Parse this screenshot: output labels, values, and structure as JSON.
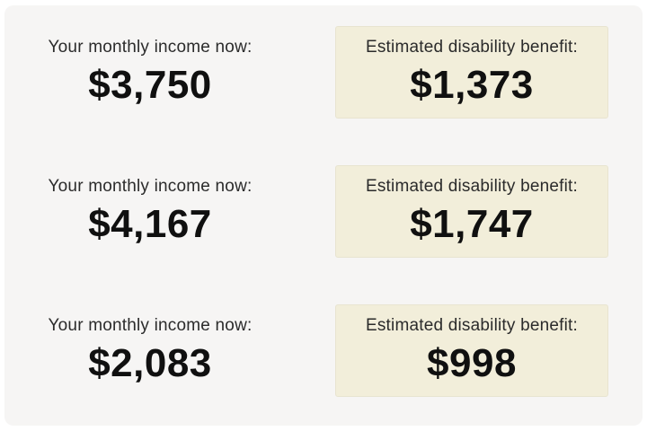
{
  "page": {
    "background": "#ffffff",
    "card_background": "#f6f5f4",
    "highlight_background": "#f2eeda",
    "highlight_border": "#e8e4d0",
    "label_color": "#2b2b2b",
    "amount_color": "#101010"
  },
  "rows": [
    {
      "income_label": "Your monthly income now:",
      "income_value": "$3,750",
      "benefit_label": "Estimated disability benefit:",
      "benefit_value": "$1,373"
    },
    {
      "income_label": "Your monthly income now:",
      "income_value": "$4,167",
      "benefit_label": "Estimated disability benefit:",
      "benefit_value": "$1,747"
    },
    {
      "income_label": "Your monthly income now:",
      "income_value": "$2,083",
      "benefit_label": "Estimated disability benefit:",
      "benefit_value": "$998"
    }
  ]
}
